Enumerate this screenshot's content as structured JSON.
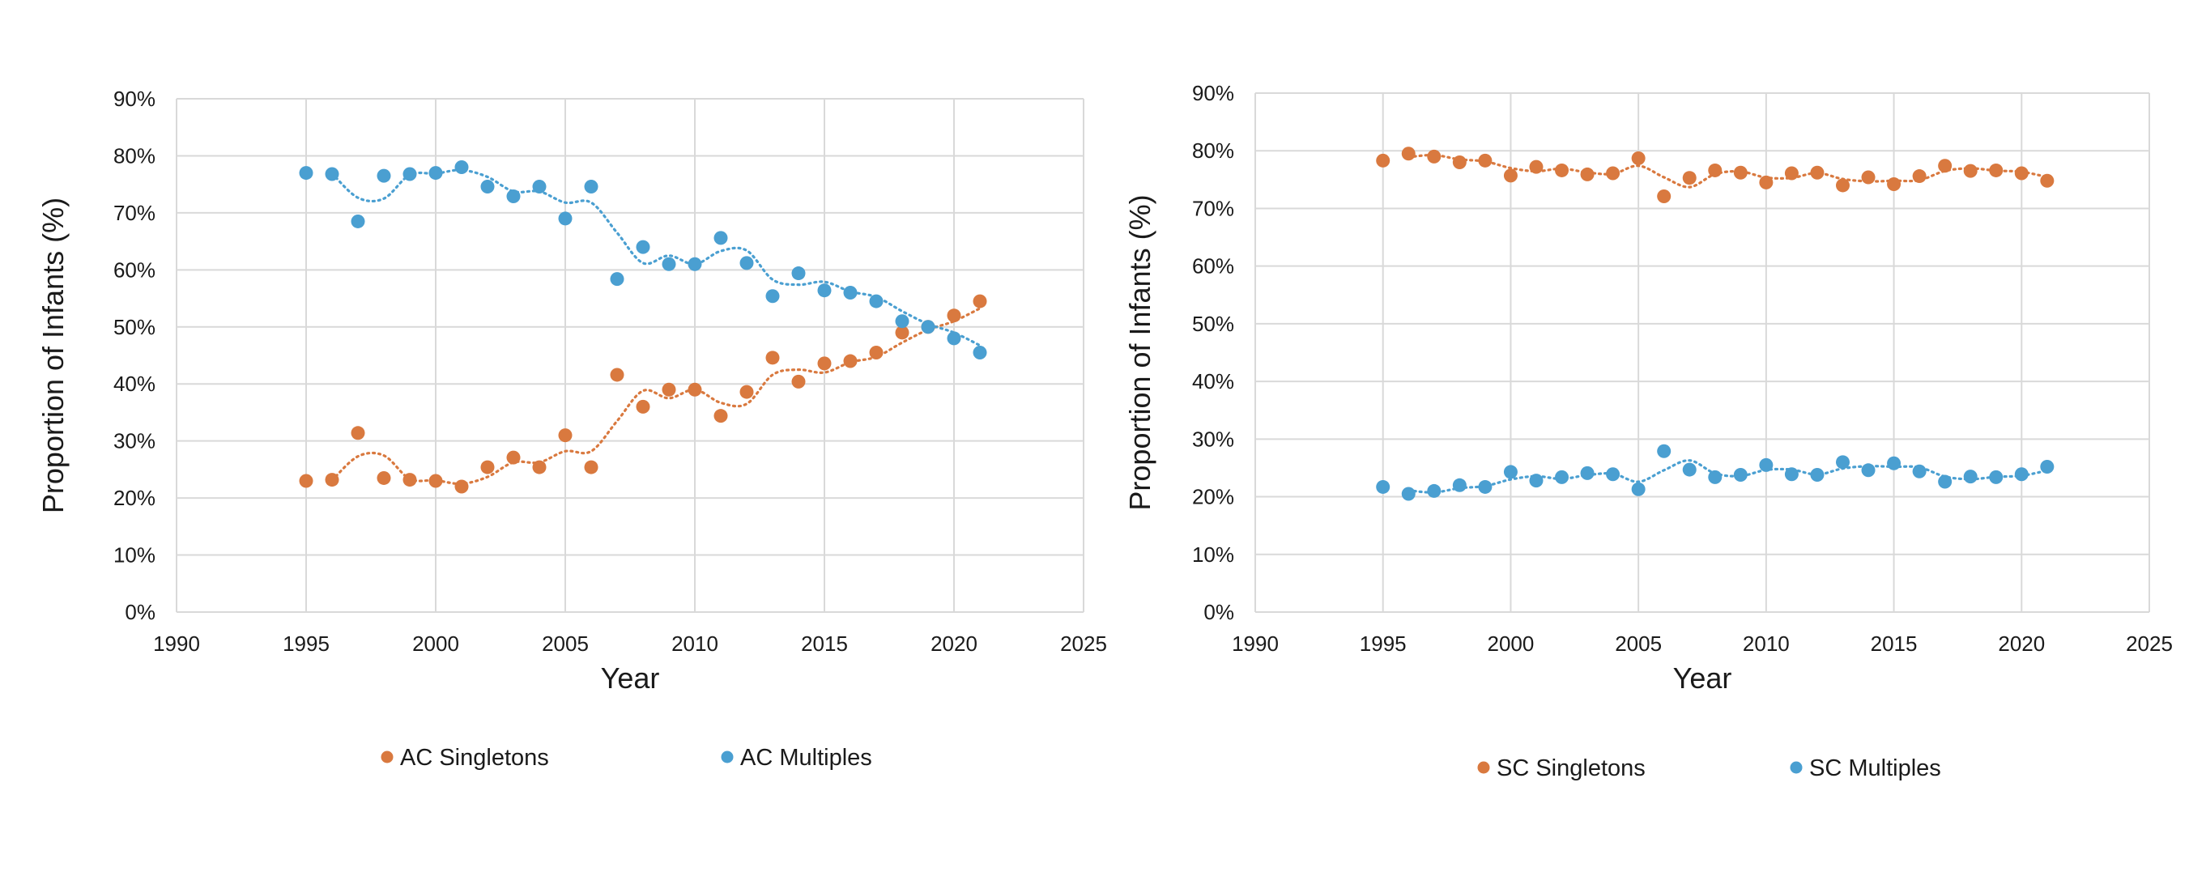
{
  "colors": {
    "singletons": "#D9793F",
    "multiples": "#4A9FD1",
    "grid": "#D9D9D9"
  },
  "chart_data": [
    {
      "type": "scatter",
      "xlabel": "Year",
      "ylabel": "Proportion of Infants (%)",
      "xlim": [
        1990,
        2025
      ],
      "ylim": [
        0,
        90
      ],
      "x_ticks": [
        "1990",
        "1995",
        "2000",
        "2005",
        "2010",
        "2015",
        "2020",
        "2025"
      ],
      "y_ticks": [
        "0%",
        "10%",
        "20%",
        "30%",
        "40%",
        "50%",
        "60%",
        "70%",
        "80%",
        "90%"
      ],
      "grid": true,
      "trendline": "moving average (dotted)",
      "legend_position": "bottom",
      "x": [
        1995,
        1996,
        1997,
        1998,
        1999,
        2000,
        2001,
        2002,
        2003,
        2004,
        2005,
        2006,
        2007,
        2008,
        2009,
        2010,
        2011,
        2012,
        2013,
        2014,
        2015,
        2016,
        2017,
        2018,
        2019,
        2020,
        2021
      ],
      "series": [
        {
          "name": "AC Singletons",
          "color": "#D9793F",
          "values": [
            23,
            23.2,
            31.4,
            23.5,
            23.2,
            23,
            22,
            25.4,
            27.1,
            25.4,
            31,
            25.4,
            41.6,
            36,
            39,
            39,
            34.4,
            38.6,
            44.6,
            40.4,
            43.6,
            44,
            45.5,
            49,
            50,
            52,
            54.5
          ]
        },
        {
          "name": "AC Multiples",
          "color": "#4A9FD1",
          "values": [
            77,
            76.8,
            68.5,
            76.5,
            76.8,
            77,
            78,
            74.6,
            72.9,
            74.6,
            69,
            74.6,
            58.4,
            64,
            61,
            61,
            65.6,
            61.2,
            55.4,
            59.4,
            56.4,
            56,
            54.5,
            51,
            50,
            48,
            45.5
          ]
        }
      ]
    },
    {
      "type": "scatter",
      "xlabel": "Year",
      "ylabel": "Proportion of Infants (%)",
      "xlim": [
        1990,
        2025
      ],
      "ylim": [
        0,
        90
      ],
      "x_ticks": [
        "1990",
        "1995",
        "2000",
        "2005",
        "2010",
        "2015",
        "2020",
        "2025"
      ],
      "y_ticks": [
        "0%",
        "10%",
        "20%",
        "30%",
        "40%",
        "50%",
        "60%",
        "70%",
        "80%",
        "90%"
      ],
      "grid": true,
      "trendline": "moving average (dotted)",
      "legend_position": "bottom",
      "x": [
        1995,
        1996,
        1997,
        1998,
        1999,
        2000,
        2001,
        2002,
        2003,
        2004,
        2005,
        2006,
        2007,
        2008,
        2009,
        2010,
        2011,
        2012,
        2013,
        2014,
        2015,
        2016,
        2017,
        2018,
        2019,
        2020,
        2021
      ],
      "series": [
        {
          "name": "SC Singletons",
          "color": "#D9793F",
          "values": [
            78.3,
            79.5,
            79,
            78,
            78.3,
            75.7,
            77.2,
            76.6,
            75.9,
            76.1,
            78.7,
            72.1,
            75.3,
            76.6,
            76.2,
            74.5,
            76.1,
            76.2,
            74,
            75.4,
            74.2,
            75.6,
            77.4,
            76.5,
            76.6,
            76.1,
            74.8
          ]
        },
        {
          "name": "SC Multiples",
          "color": "#4A9FD1",
          "values": [
            21.7,
            20.5,
            21,
            22,
            21.7,
            24.3,
            22.8,
            23.4,
            24.1,
            23.9,
            21.3,
            27.9,
            24.7,
            23.4,
            23.8,
            25.5,
            23.9,
            23.8,
            26,
            24.6,
            25.8,
            24.4,
            22.6,
            23.5,
            23.4,
            23.9,
            25.2
          ]
        }
      ]
    }
  ]
}
